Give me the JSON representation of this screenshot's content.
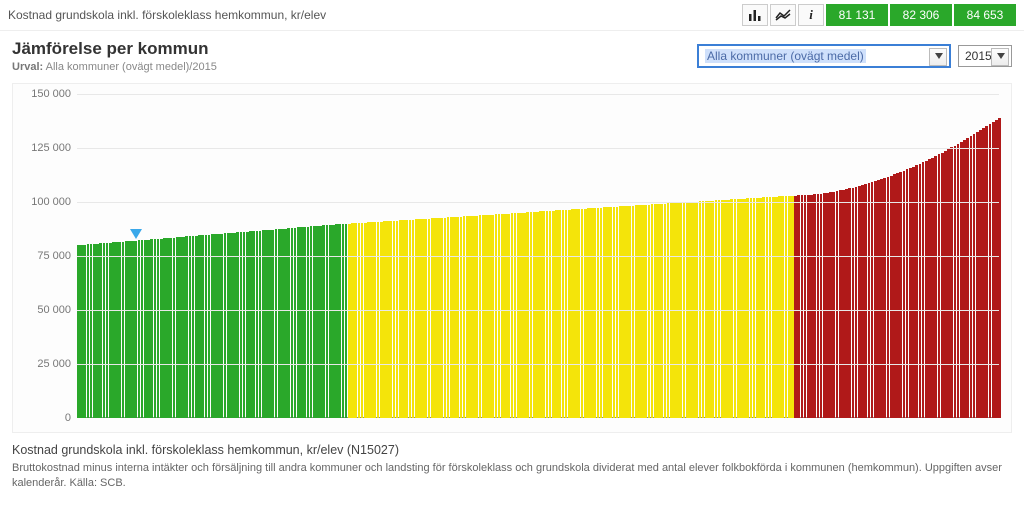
{
  "header": {
    "title": "Kostnad grundskola inkl. förskoleklass hemkommun, kr/elev",
    "stats": [
      {
        "label": "81 131",
        "bg": "#2aa82a"
      },
      {
        "label": "82 306",
        "bg": "#2aa82a"
      },
      {
        "label": "84 653",
        "bg": "#2aa82a"
      }
    ]
  },
  "controls": {
    "regionSelect": "Alla kommuner (ovägt medel)",
    "yearSelect": "2015"
  },
  "chart": {
    "type": "bar",
    "title": "Jämförelse per kommun",
    "selection_label": "Urval:",
    "selection_value": "Alla kommuner (ovägt medel)/2015",
    "background_color": "#fdfdfd",
    "grid_color": "#e8e8e8",
    "axis_font_size": 11,
    "ylim": [
      0,
      150000
    ],
    "ytick_step": 25000,
    "yticks": [
      "0",
      "25 000",
      "50 000",
      "75 000",
      "100 000",
      "125 000",
      "150 000"
    ],
    "marker": {
      "index": 18,
      "color": "#3aa8ea"
    },
    "series": {
      "green": {
        "color": "#2aa82a",
        "start": 80000,
        "end": 90000,
        "count": 85
      },
      "yellow": {
        "color": "#f4e40a",
        "start": 90000,
        "end": 103000,
        "count": 140
      },
      "red": {
        "color": "#b01919",
        "start": 103000,
        "end": 139000,
        "count": 65
      }
    }
  },
  "description": {
    "title": "Kostnad grundskola inkl. förskoleklass hemkommun, kr/elev (N15027)",
    "body": "Bruttokostnad minus interna intäkter och försäljning till andra kommuner och landsting för förskoleklass och grundskola dividerat med antal elever folkbokförda i kommunen (hemkommun). Uppgiften avser kalenderår. Källa: SCB."
  }
}
